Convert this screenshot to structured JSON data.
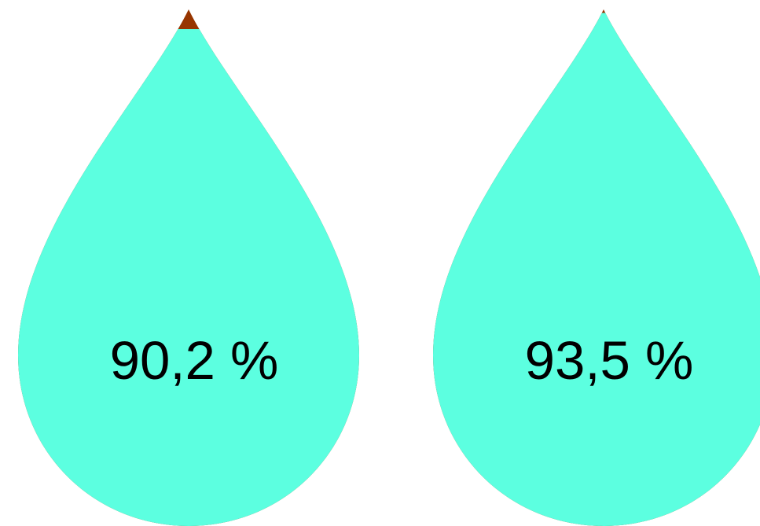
{
  "chart_data": {
    "type": "pictorial-fill",
    "shape": "droplet",
    "colors": {
      "fill": "#5cffe0",
      "empty": "#973500",
      "label": "#000000"
    },
    "drops": [
      {
        "value": 90.2,
        "label": "90,2 %"
      },
      {
        "value": 93.5,
        "label": "93,5 %"
      }
    ]
  }
}
